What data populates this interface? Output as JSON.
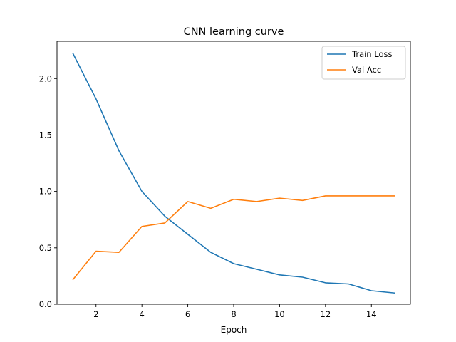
{
  "chart_data": {
    "type": "line",
    "title": "CNN learning curve",
    "xlabel": "Epoch",
    "ylabel": "",
    "xlim": [
      0.3,
      15.7
    ],
    "ylim": [
      0.0,
      2.33
    ],
    "xticks": [
      2,
      4,
      6,
      8,
      10,
      12,
      14
    ],
    "xtick_labels": [
      "2",
      "4",
      "6",
      "8",
      "10",
      "12",
      "14"
    ],
    "yticks": [
      0.0,
      0.5,
      1.0,
      1.5,
      2.0
    ],
    "ytick_labels": [
      "0.0",
      "0.5",
      "1.0",
      "1.5",
      "2.0"
    ],
    "grid": false,
    "legend": "top-right",
    "x": [
      1,
      2,
      3,
      4,
      5,
      6,
      7,
      8,
      9,
      10,
      11,
      12,
      13,
      14,
      15
    ],
    "series": [
      {
        "name": "Train Loss",
        "color": "#1f77b4",
        "values": [
          2.22,
          1.82,
          1.36,
          1.0,
          0.78,
          0.62,
          0.46,
          0.36,
          0.31,
          0.26,
          0.24,
          0.19,
          0.18,
          0.12,
          0.1
        ]
      },
      {
        "name": "Val Acc",
        "color": "#ff7f0e",
        "values": [
          0.22,
          0.47,
          0.46,
          0.69,
          0.72,
          0.91,
          0.85,
          0.93,
          0.91,
          0.94,
          0.92,
          0.96,
          0.96,
          0.96,
          0.96
        ]
      }
    ]
  }
}
